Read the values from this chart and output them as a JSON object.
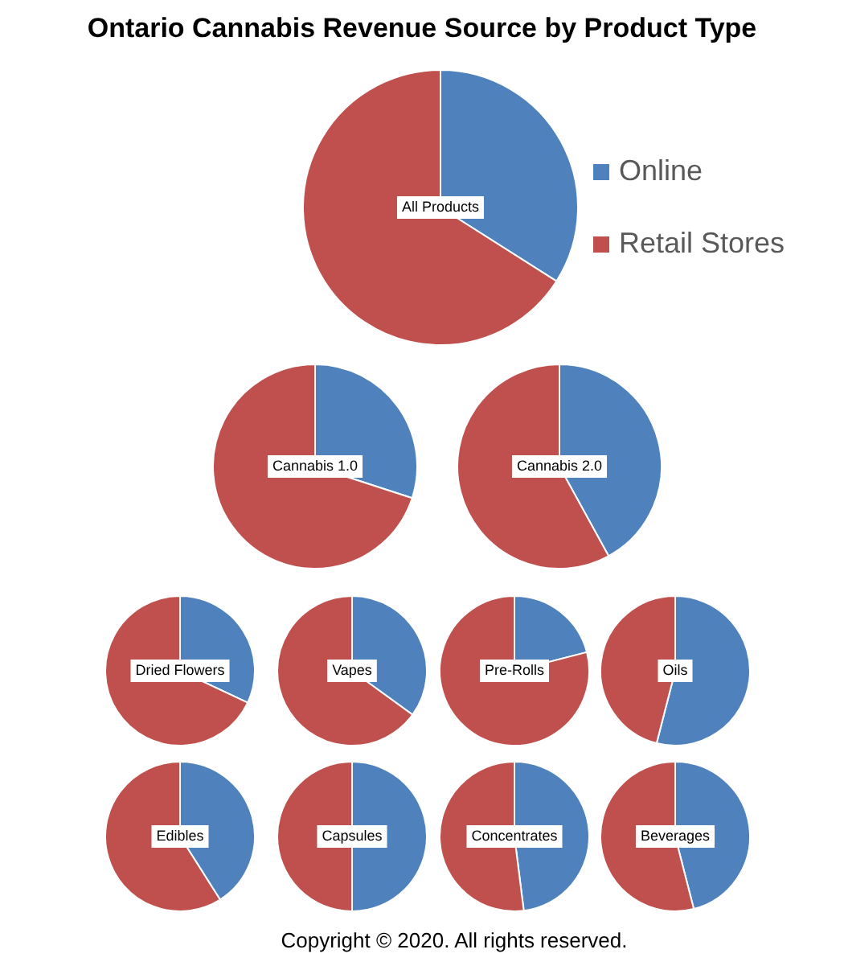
{
  "chart_data": [
    {
      "type": "pie",
      "title": "Ontario Cannabis Revenue Source by Product Type",
      "categories": [
        "Online",
        "Retail Stores"
      ],
      "values": [
        34,
        66
      ],
      "colors": [
        "#4f81bd",
        "#c0504d"
      ],
      "legend": "right",
      "annotations": [
        "All Products"
      ]
    },
    {
      "type": "pie",
      "categories": [
        null,
        null
      ],
      "values": [
        30,
        70
      ],
      "colors": [
        "#4f81bd",
        "#c0504d"
      ],
      "annotations": [
        "Cannabis 1.0"
      ]
    },
    {
      "type": "pie",
      "categories": [
        null,
        null
      ],
      "values": [
        42,
        58
      ],
      "colors": [
        "#4f81bd",
        "#c0504d"
      ],
      "annotations": [
        "Cannabis 2.0"
      ]
    },
    {
      "type": "pie",
      "categories": [
        null,
        null
      ],
      "values": [
        32,
        68
      ],
      "colors": [
        "#4f81bd",
        "#c0504d"
      ],
      "annotations": [
        "Dried Flowers"
      ]
    },
    {
      "type": "pie",
      "categories": [
        null,
        null
      ],
      "values": [
        35,
        65
      ],
      "colors": [
        "#4f81bd",
        "#c0504d"
      ],
      "annotations": [
        "Vapes"
      ]
    },
    {
      "type": "pie",
      "categories": [
        null,
        null
      ],
      "values": [
        21,
        79
      ],
      "colors": [
        "#4f81bd",
        "#c0504d"
      ],
      "annotations": [
        "Pre-Rolls"
      ]
    },
    {
      "type": "pie",
      "categories": [
        null,
        null
      ],
      "values": [
        54,
        46
      ],
      "colors": [
        "#4f81bd",
        "#c0504d"
      ],
      "annotations": [
        "Oils"
      ]
    },
    {
      "type": "pie",
      "categories": [
        null,
        null
      ],
      "values": [
        41,
        59
      ],
      "colors": [
        "#4f81bd",
        "#c0504d"
      ],
      "annotations": [
        "Edibles"
      ]
    },
    {
      "type": "pie",
      "categories": [
        null,
        null
      ],
      "values": [
        50,
        50
      ],
      "colors": [
        "#4f81bd",
        "#c0504d"
      ],
      "annotations": [
        "Capsules"
      ]
    },
    {
      "type": "pie",
      "categories": [
        null,
        null
      ],
      "values": [
        48,
        52
      ],
      "colors": [
        "#4f81bd",
        "#c0504d"
      ],
      "annotations": [
        "Concentrates"
      ]
    },
    {
      "type": "pie",
      "categories": [
        null,
        null
      ],
      "values": [
        46,
        54
      ],
      "colors": [
        "#4f81bd",
        "#c0504d"
      ],
      "annotations": [
        "Beverages",
        "Copyright © 2020. All rights reserved."
      ]
    }
  ]
}
